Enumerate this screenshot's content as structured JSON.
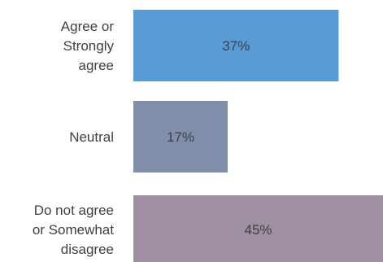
{
  "chart_data": {
    "type": "bar",
    "orientation": "horizontal",
    "categories": [
      [
        "Agree or",
        "Strongly",
        "agree"
      ],
      [
        "Neutral"
      ],
      [
        "Do not agree",
        "or Somewhat",
        "disagree"
      ]
    ],
    "values": [
      37,
      17,
      45
    ],
    "data_labels": [
      "37%",
      "17%",
      "45%"
    ],
    "colors": [
      "#5B9BD5",
      "#7F8FA9",
      "#9E8FA2"
    ],
    "title": "",
    "xlabel": "",
    "ylabel": "",
    "xlim": [
      0,
      45
    ],
    "grid": false,
    "legend": "none"
  }
}
